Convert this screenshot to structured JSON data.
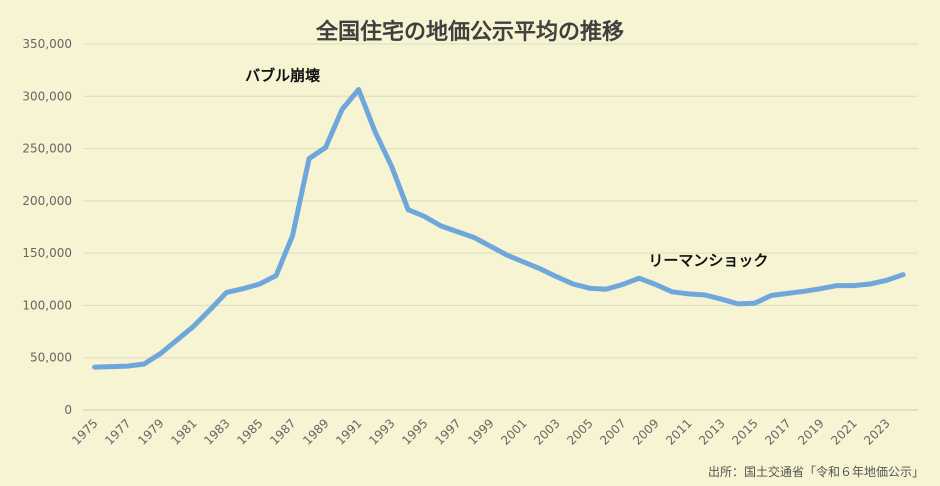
{
  "chart_data": {
    "type": "line",
    "title": "全国住宅の地価公示平均の推移",
    "source": "出所：国土交通省「令和６年地価公示」",
    "xlabel": "",
    "ylabel": "",
    "ylim": [
      0,
      350000
    ],
    "yticks": [
      "0",
      "50,000",
      "100,000",
      "150,000",
      "200,000",
      "250,000",
      "300,000",
      "350,000"
    ],
    "xtick_labels": [
      "1975",
      "1977",
      "1979",
      "1981",
      "1983",
      "1985",
      "1987",
      "1989",
      "1991",
      "1993",
      "1995",
      "1997",
      "1999",
      "2001",
      "2003",
      "2005",
      "2007",
      "2009",
      "2011",
      "2013",
      "2015",
      "2017",
      "2019",
      "2021",
      "2023"
    ],
    "grid": true,
    "series_color": "#6fa7dc",
    "x": [
      1975,
      1976,
      1977,
      1978,
      1979,
      1980,
      1981,
      1982,
      1983,
      1984,
      1985,
      1986,
      1987,
      1988,
      1989,
      1990,
      1991,
      1992,
      1993,
      1994,
      1995,
      1996,
      1997,
      1998,
      1999,
      2000,
      2001,
      2002,
      2003,
      2004,
      2005,
      2006,
      2007,
      2008,
      2009,
      2010,
      2011,
      2012,
      2013,
      2014,
      2015,
      2016,
      2017,
      2018,
      2019,
      2020,
      2021,
      2022,
      2023,
      2024
    ],
    "values": [
      41000,
      41500,
      42000,
      44000,
      54000,
      67000,
      80000,
      96000,
      112500,
      116000,
      120500,
      128500,
      167000,
      240500,
      251000,
      287500,
      306500,
      266000,
      233000,
      191500,
      185000,
      176000,
      170500,
      165000,
      156500,
      148000,
      141500,
      135000,
      127500,
      120500,
      116500,
      115500,
      120000,
      126000,
      120000,
      113000,
      111000,
      110000,
      106000,
      101500,
      102000,
      109500,
      111500,
      113500,
      116000,
      119000,
      119000,
      120500,
      124000,
      129500
    ],
    "annotations": [
      {
        "text": "バブル崩壊",
        "x": 1986.4,
        "y": 315000
      },
      {
        "text": "リーマンショック",
        "x": 2012.2,
        "y": 138000
      }
    ]
  }
}
